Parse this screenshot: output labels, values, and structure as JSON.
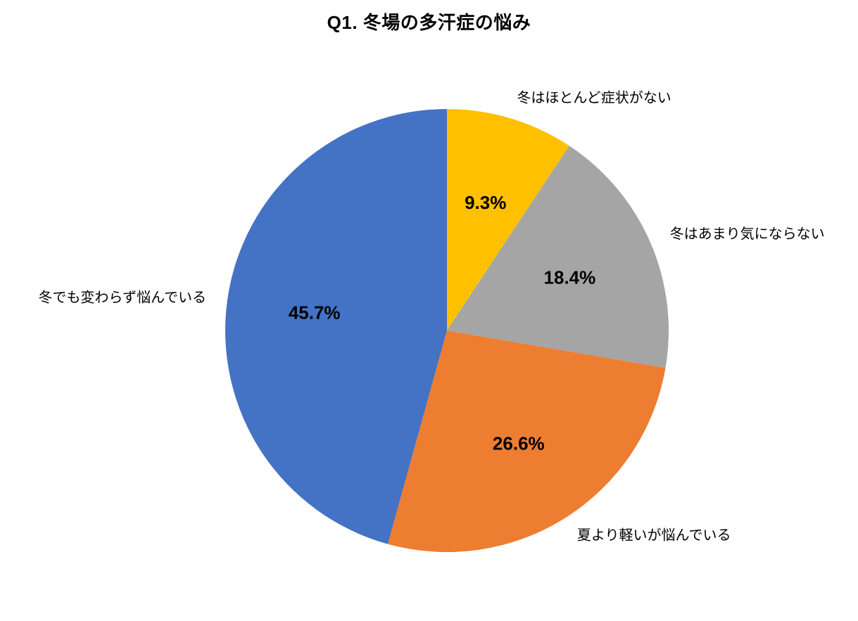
{
  "page": {
    "background_color": "#ffffff",
    "text_color": "#000000"
  },
  "chart_data": {
    "type": "pie",
    "title": "Q1. 冬場の多汗症の悩み",
    "start_angle_deg": 0,
    "direction": "clockwise",
    "legend_position": "none",
    "labels_outside": true,
    "percent_labels_inside": true,
    "slices": [
      {
        "label": "冬はほとんど症状がない",
        "value": 9.3,
        "percent_label": "9.3%",
        "color": "#FFC000"
      },
      {
        "label": "冬はあまり気にならない",
        "value": 18.4,
        "percent_label": "18.4%",
        "color": "#A5A5A5"
      },
      {
        "label": "夏より軽いが悩んでいる",
        "value": 26.6,
        "percent_label": "26.6%",
        "color": "#ED7D31"
      },
      {
        "label": "冬でも変わらず悩んでいる",
        "value": 45.7,
        "percent_label": "45.7%",
        "color": "#4472C4"
      }
    ]
  }
}
